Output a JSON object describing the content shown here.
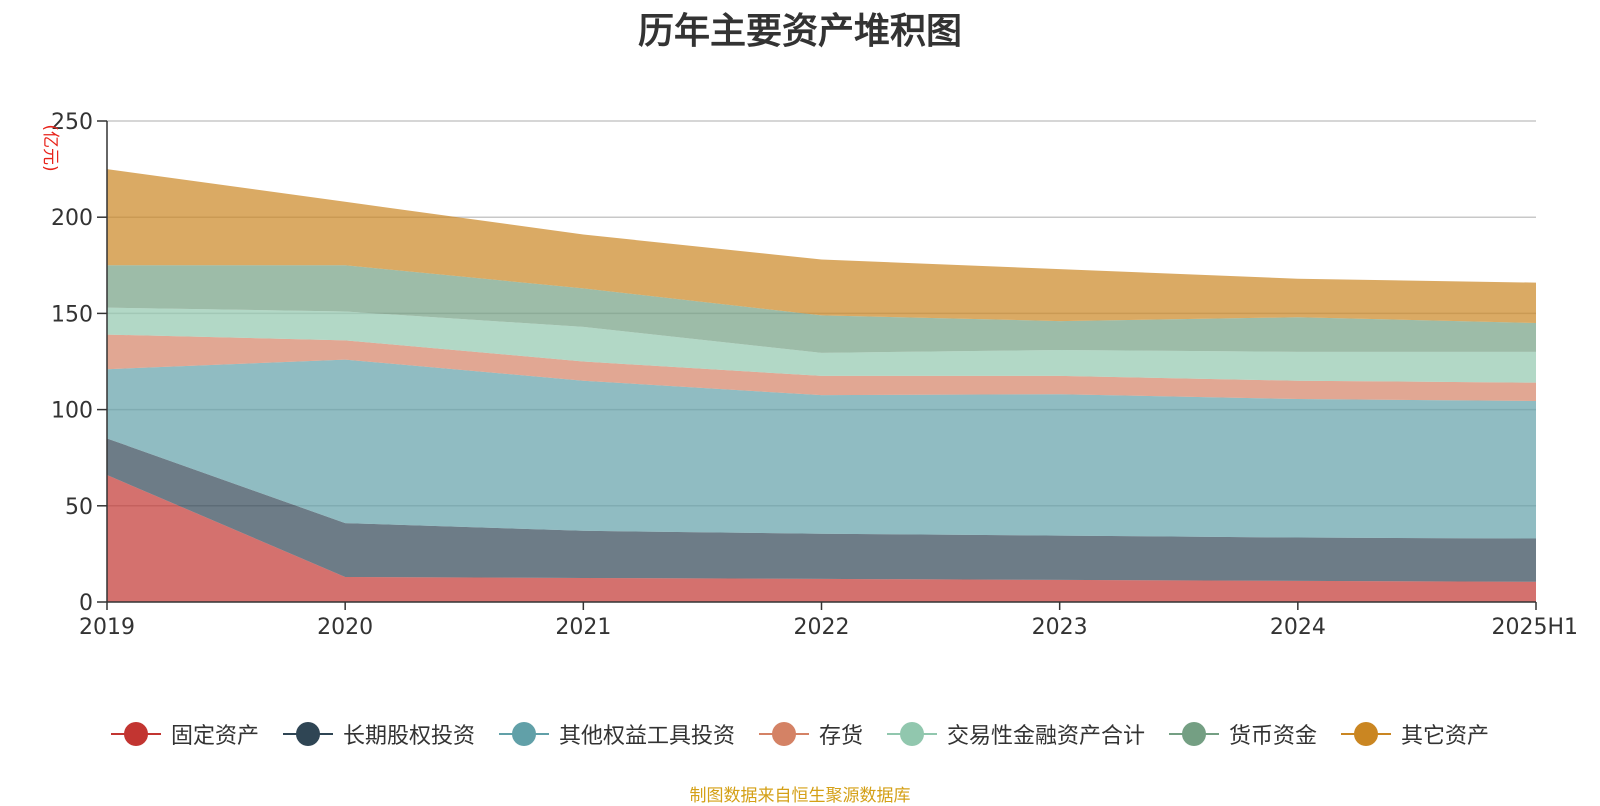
{
  "chart_data": {
    "type": "area",
    "stacked": true,
    "title": "历年主要资产堆积图",
    "ylabel": "(亿元)",
    "categories": [
      "2019",
      "2020",
      "2021",
      "2022",
      "2023",
      "2024",
      "2025H1"
    ],
    "ylim": [
      0,
      250
    ],
    "yticks": [
      0,
      50,
      100,
      150,
      200,
      250
    ],
    "grid": true,
    "legend_position": "bottom",
    "series": [
      {
        "name": "固定资产",
        "color": "#c23531",
        "values": [
          66,
          13,
          12.5,
          12,
          11.5,
          11,
          10.5
        ]
      },
      {
        "name": "长期股权投资",
        "color": "#2f4554",
        "values": [
          19,
          28,
          24.5,
          23.5,
          23,
          22.5,
          22.5
        ]
      },
      {
        "name": "其他权益工具投资",
        "color": "#61a0a8",
        "values": [
          36,
          85,
          78,
          72,
          73.5,
          72,
          71.5
        ]
      },
      {
        "name": "存货",
        "color": "#d48265",
        "values": [
          18,
          10,
          10,
          10,
          9.5,
          9.5,
          9.5
        ]
      },
      {
        "name": "交易性金融资产合计",
        "color": "#91c7ae",
        "values": [
          14,
          15,
          18,
          12,
          13.5,
          15,
          16
        ]
      },
      {
        "name": "货币资金",
        "color": "#749f83",
        "values": [
          22,
          24,
          20,
          19.5,
          15,
          18,
          15
        ]
      },
      {
        "name": "其它资产",
        "color": "#ca8622",
        "values": [
          50,
          33,
          28,
          29,
          27,
          20,
          21
        ]
      }
    ]
  },
  "source_note": "制图数据来自恒生聚源数据库"
}
